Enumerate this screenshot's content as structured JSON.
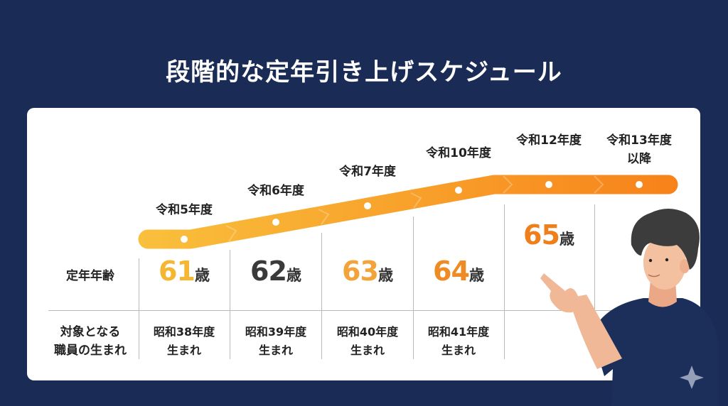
{
  "title": "段階的な定年引き上げスケジュール",
  "row_labels": {
    "retirement_age": "定年年齢",
    "target_line1": "対象となる",
    "target_line2": "職員の生まれ"
  },
  "age_unit": "歳",
  "columns": [
    {
      "year": "令和5年度",
      "age": "61",
      "birth1": "昭和38年度",
      "birth2": "生まれ",
      "color": "#f5b731"
    },
    {
      "year": "令和6年度",
      "age": "62",
      "birth1": "昭和39年度",
      "birth2": "生まれ",
      "color": "#3a3a3a"
    },
    {
      "year": "令和7年度",
      "age": "63",
      "birth1": "昭和40年度",
      "birth2": "生まれ",
      "color": "#f2a43a"
    },
    {
      "year": "令和10年度",
      "age": "64",
      "birth1": "昭和41年度",
      "birth2": "生まれ",
      "color": "#ef8b24"
    },
    {
      "year": "令和12年度",
      "age": "65",
      "color": "#ee7f1b"
    },
    {
      "year": "令和13年度",
      "year2": "以降"
    }
  ],
  "colors": {
    "background": "#1a2c55",
    "ribbon_start": "#f9c03c",
    "ribbon_end": "#f7821a"
  }
}
